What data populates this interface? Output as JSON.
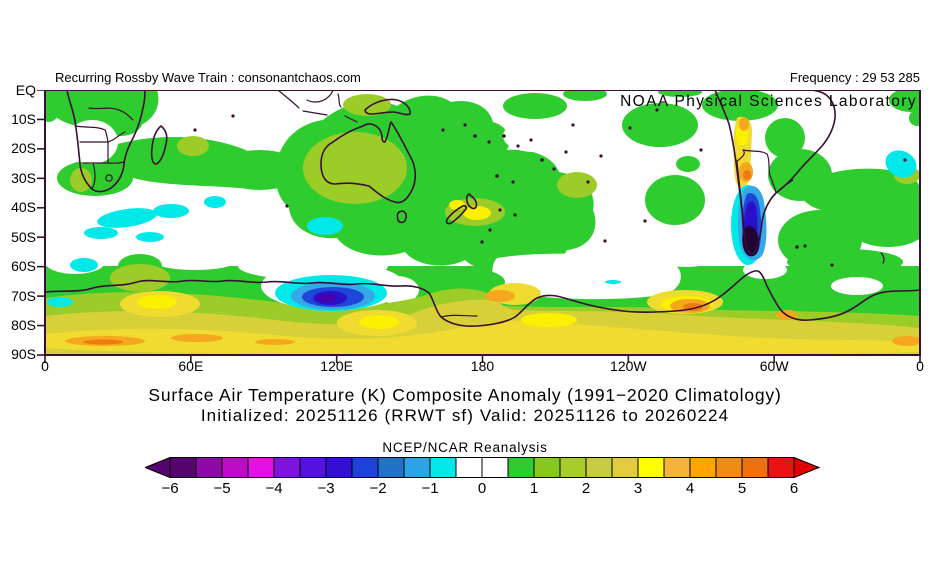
{
  "header": {
    "left": "Recurring Rossby Wave Train : consonantchaos.com",
    "right": "Frequency : 29 53 285",
    "agency": "NOAA Physical Sciences Laboratory"
  },
  "titles": {
    "line1": "Surface Air Temperature (K) Composite Anomaly (1991−2020 Climatology)",
    "line2": "Initialized: 20251126 (RRWT sf) Valid: 20251126 to 20260224",
    "legend_title": "NCEP/NCAR Reanalysis"
  },
  "map": {
    "lat_labels": [
      "EQ",
      "10S",
      "20S",
      "30S",
      "40S",
      "50S",
      "60S",
      "70S",
      "80S",
      "90S"
    ],
    "lon_labels": [
      "0",
      "60E",
      "120E",
      "180",
      "120W",
      "60W",
      "0"
    ]
  },
  "colorbar": {
    "tick_labels": [
      "−6",
      "−5",
      "−4",
      "−3",
      "−2",
      "−1",
      "0",
      "1",
      "2",
      "3",
      "4",
      "5",
      "6"
    ],
    "cell_colors": [
      "#56046E",
      "#8E0AA8",
      "#BC0CC6",
      "#E410E4",
      "#7E14DE",
      "#5412DE",
      "#3410D2",
      "#1E42D8",
      "#2072C8",
      "#2AA4E4",
      "#00E8E8",
      "#FFFFFF",
      "#FFFFFF",
      "#2ECC2E",
      "#86C81E",
      "#A8CC28",
      "#C8CC40",
      "#E0CC3C",
      "#FFFF00",
      "#F4B43C",
      "#FFA400",
      "#F08C14",
      "#EE7010",
      "#E81414"
    ],
    "left_arrow_color": "#56046E",
    "right_arrow_color": "#E00000"
  },
  "palette": {
    "green": "#2ECC2E",
    "lightgreen": "#9CCC28",
    "paleyellow": "#D8D038",
    "yellow": "#F0DC30",
    "brightyellow": "#FAF000",
    "orange": "#F5A81E",
    "deeporange": "#EE7A10",
    "cyan": "#00E8E8",
    "skyblue": "#35A8E8",
    "blue": "#1E46D8",
    "darkblue": "#2A10C8",
    "violet": "#4A00A8",
    "darkest": "#200433",
    "coast": "#3A0F35"
  }
}
